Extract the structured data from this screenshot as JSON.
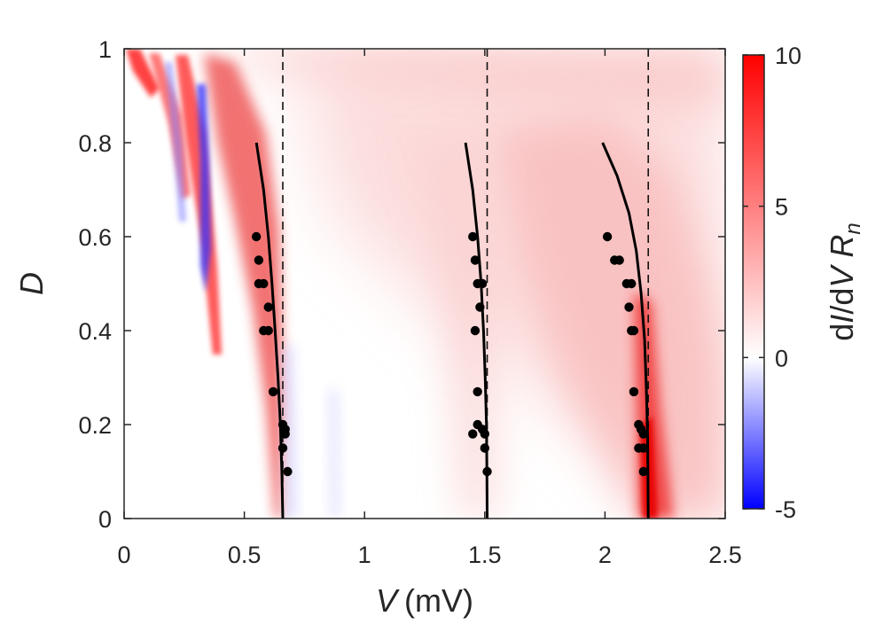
{
  "chart_data": {
    "type": "heatmap",
    "x_axis": {
      "label_var": "V",
      "label_unit": "(mV)",
      "range": [
        0,
        2.5
      ],
      "ticks": [
        0,
        0.5,
        1,
        1.5,
        2,
        2.5
      ],
      "tick_labels": [
        "0",
        "0.5",
        "1",
        "1.5",
        "2",
        "2.5"
      ]
    },
    "y_axis": {
      "label": "D",
      "range": [
        0,
        1
      ],
      "ticks": [
        0,
        0.2,
        0.4,
        0.6,
        0.8,
        1
      ],
      "tick_labels": [
        "0",
        "0.2",
        "0.4",
        "0.6",
        "0.8",
        "1"
      ]
    },
    "colorbar": {
      "label_prefix": "d",
      "label_I": "I",
      "label_mid": "/d",
      "label_V": "V ",
      "label_R": "R",
      "label_sub": "n",
      "range": [
        -5,
        10
      ],
      "ticks": [
        -5,
        0,
        5,
        10
      ],
      "tick_labels": [
        "-5",
        "0",
        "5",
        "10"
      ],
      "colors": {
        "low": "#0000ff",
        "mid": "#ffffff",
        "high": "#ff0000"
      }
    },
    "vertical_dashed_lines": [
      0.66,
      1.51,
      2.18
    ],
    "theory_curves": [
      {
        "name": "curve-1",
        "points": [
          [
            0.55,
            0.8
          ],
          [
            0.58,
            0.7
          ],
          [
            0.6,
            0.6
          ],
          [
            0.615,
            0.5
          ],
          [
            0.628,
            0.4
          ],
          [
            0.64,
            0.3
          ],
          [
            0.65,
            0.2
          ],
          [
            0.656,
            0.1
          ],
          [
            0.66,
            0.0
          ]
        ]
      },
      {
        "name": "curve-2",
        "points": [
          [
            1.42,
            0.8
          ],
          [
            1.45,
            0.7
          ],
          [
            1.47,
            0.6
          ],
          [
            1.485,
            0.5
          ],
          [
            1.495,
            0.4
          ],
          [
            1.502,
            0.3
          ],
          [
            1.507,
            0.2
          ],
          [
            1.509,
            0.1
          ],
          [
            1.51,
            0.0
          ]
        ]
      },
      {
        "name": "curve-3",
        "points": [
          [
            1.99,
            0.8
          ],
          [
            2.05,
            0.73
          ],
          [
            2.1,
            0.65
          ],
          [
            2.13,
            0.57
          ],
          [
            2.15,
            0.48
          ],
          [
            2.165,
            0.38
          ],
          [
            2.172,
            0.28
          ],
          [
            2.177,
            0.18
          ],
          [
            2.179,
            0.08
          ],
          [
            2.18,
            0.0
          ]
        ]
      }
    ],
    "experimental_points": [
      [
        0.55,
        0.6
      ],
      [
        0.56,
        0.55
      ],
      [
        0.56,
        0.5
      ],
      [
        0.58,
        0.5
      ],
      [
        0.6,
        0.45
      ],
      [
        0.58,
        0.4
      ],
      [
        0.6,
        0.4
      ],
      [
        0.62,
        0.27
      ],
      [
        0.66,
        0.2
      ],
      [
        0.67,
        0.18
      ],
      [
        0.66,
        0.15
      ],
      [
        0.68,
        0.1
      ],
      [
        0.67,
        0.19
      ],
      [
        1.45,
        0.6
      ],
      [
        1.46,
        0.55
      ],
      [
        1.47,
        0.5
      ],
      [
        1.49,
        0.5
      ],
      [
        1.48,
        0.45
      ],
      [
        1.46,
        0.4
      ],
      [
        1.47,
        0.27
      ],
      [
        1.47,
        0.2
      ],
      [
        1.45,
        0.18
      ],
      [
        1.49,
        0.19
      ],
      [
        1.5,
        0.18
      ],
      [
        1.5,
        0.15
      ],
      [
        1.51,
        0.1
      ],
      [
        2.01,
        0.6
      ],
      [
        2.04,
        0.55
      ],
      [
        2.06,
        0.55
      ],
      [
        2.09,
        0.5
      ],
      [
        2.11,
        0.5
      ],
      [
        2.1,
        0.45
      ],
      [
        2.11,
        0.4
      ],
      [
        2.12,
        0.4
      ],
      [
        2.12,
        0.27
      ],
      [
        2.14,
        0.2
      ],
      [
        2.15,
        0.19
      ],
      [
        2.16,
        0.18
      ],
      [
        2.14,
        0.15
      ],
      [
        2.16,
        0.15
      ],
      [
        2.16,
        0.1
      ]
    ]
  }
}
